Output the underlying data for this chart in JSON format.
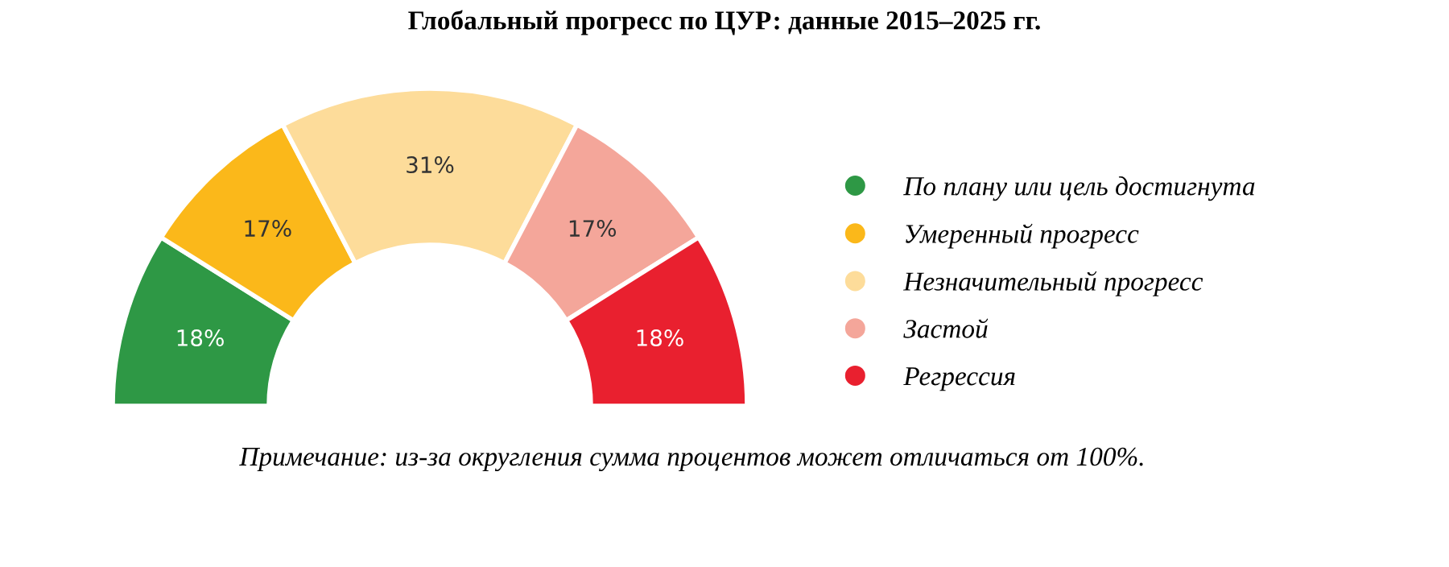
{
  "chart_data": {
    "type": "donut",
    "title": "Глобальный прогресс по ЦУР: данные 2015–2025 гг.",
    "categories": [
      "По плану или цель достигнута",
      "Умеренный прогресс",
      "Незначительный прогресс",
      "Застой",
      "Регрессия"
    ],
    "values": [
      18,
      17,
      31,
      17,
      18
    ],
    "value_labels": [
      "18%",
      "17%",
      "31%",
      "17%",
      "18%"
    ],
    "colors": [
      "#2e9845",
      "#fbb81a",
      "#fddc9a",
      "#f4a69a",
      "#e9202f"
    ],
    "legend": "right",
    "annotations": [
      "Примечание: из-за округления сумма процентов может отличаться от 100%."
    ]
  }
}
